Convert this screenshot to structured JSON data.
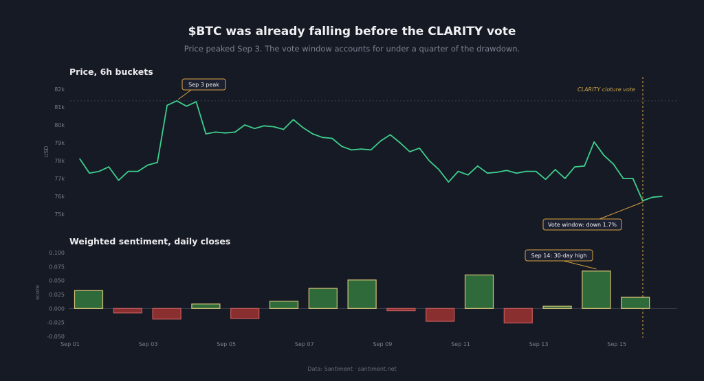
{
  "header": {
    "title": "$BTC was already falling before the CLARITY vote",
    "subtitle": "Price peaked Sep 3. The vote window accounts for under a quarter of the drawdown."
  },
  "footer": {
    "source": "Data: Santiment · santiment.net"
  },
  "colors": {
    "background": "#161a24",
    "price_line": "#3ecf8e",
    "positive_fill": "#2f6b3a",
    "positive_edge": "#d7c278",
    "negative_fill": "#8a2f2f",
    "negative_edge": "#c85c5c",
    "annotation": "#d9a441"
  },
  "chart_data": [
    {
      "type": "line",
      "title": "Price, 6h buckets",
      "ylabel": "USD",
      "yticks": [
        "75k",
        "76k",
        "77k",
        "78k",
        "79k",
        "80k",
        "81k",
        "82k"
      ],
      "ylim": [
        75000,
        82000
      ],
      "grid": false,
      "series": [
        {
          "values": [
            78100,
            77300,
            77400,
            77650,
            76900,
            77400,
            77400,
            77750,
            77900,
            81100,
            81350,
            81050,
            81300,
            79500,
            79600,
            79550,
            79600,
            80000,
            79800,
            79950,
            79900,
            79750,
            80300,
            79850,
            79500,
            79300,
            79250,
            78800,
            78600,
            78650,
            78600,
            79100,
            79450,
            79000,
            78500,
            78700,
            78000,
            77500,
            76800,
            77400,
            77200,
            77700,
            77300,
            77350,
            77450,
            77300,
            77400,
            77400,
            76950,
            77500,
            77000,
            77650,
            77700,
            79050,
            78300,
            77800,
            77000,
            77000,
            75750,
            75950,
            76000
          ]
        }
      ],
      "reference_line": {
        "value": 81350,
        "style": "dotted"
      },
      "annotations": [
        {
          "text": "Sep 3 peak"
        },
        {
          "text": "Vote window: down 1.7%"
        },
        {
          "text": "CLARITY cloture vote"
        }
      ]
    },
    {
      "type": "bar",
      "title": "Weighted sentiment, daily closes",
      "ylabel": "score",
      "categories": [
        "Sep 01",
        "Sep 02",
        "Sep 03",
        "Sep 04",
        "Sep 05",
        "Sep 06",
        "Sep 07",
        "Sep 08",
        "Sep 09",
        "Sep 10",
        "Sep 11",
        "Sep 12",
        "Sep 13",
        "Sep 14",
        "Sep 15"
      ],
      "values": [
        0.032,
        -0.008,
        -0.019,
        0.008,
        -0.018,
        0.013,
        0.036,
        0.051,
        -0.004,
        -0.023,
        0.06,
        -0.026,
        0.004,
        0.067,
        0.02
      ],
      "yticks": [
        "-0.050",
        "-0.025",
        "0.000",
        "0.025",
        "0.050",
        "0.075",
        "0.100"
      ],
      "ylim": [
        -0.05,
        0.1
      ],
      "xticks": [
        "Sep 01",
        "Sep 03",
        "Sep 05",
        "Sep 07",
        "Sep 09",
        "Sep 11",
        "Sep 13",
        "Sep 15"
      ],
      "annotations": [
        {
          "text": "Sep 14: 30-day high"
        }
      ]
    }
  ]
}
